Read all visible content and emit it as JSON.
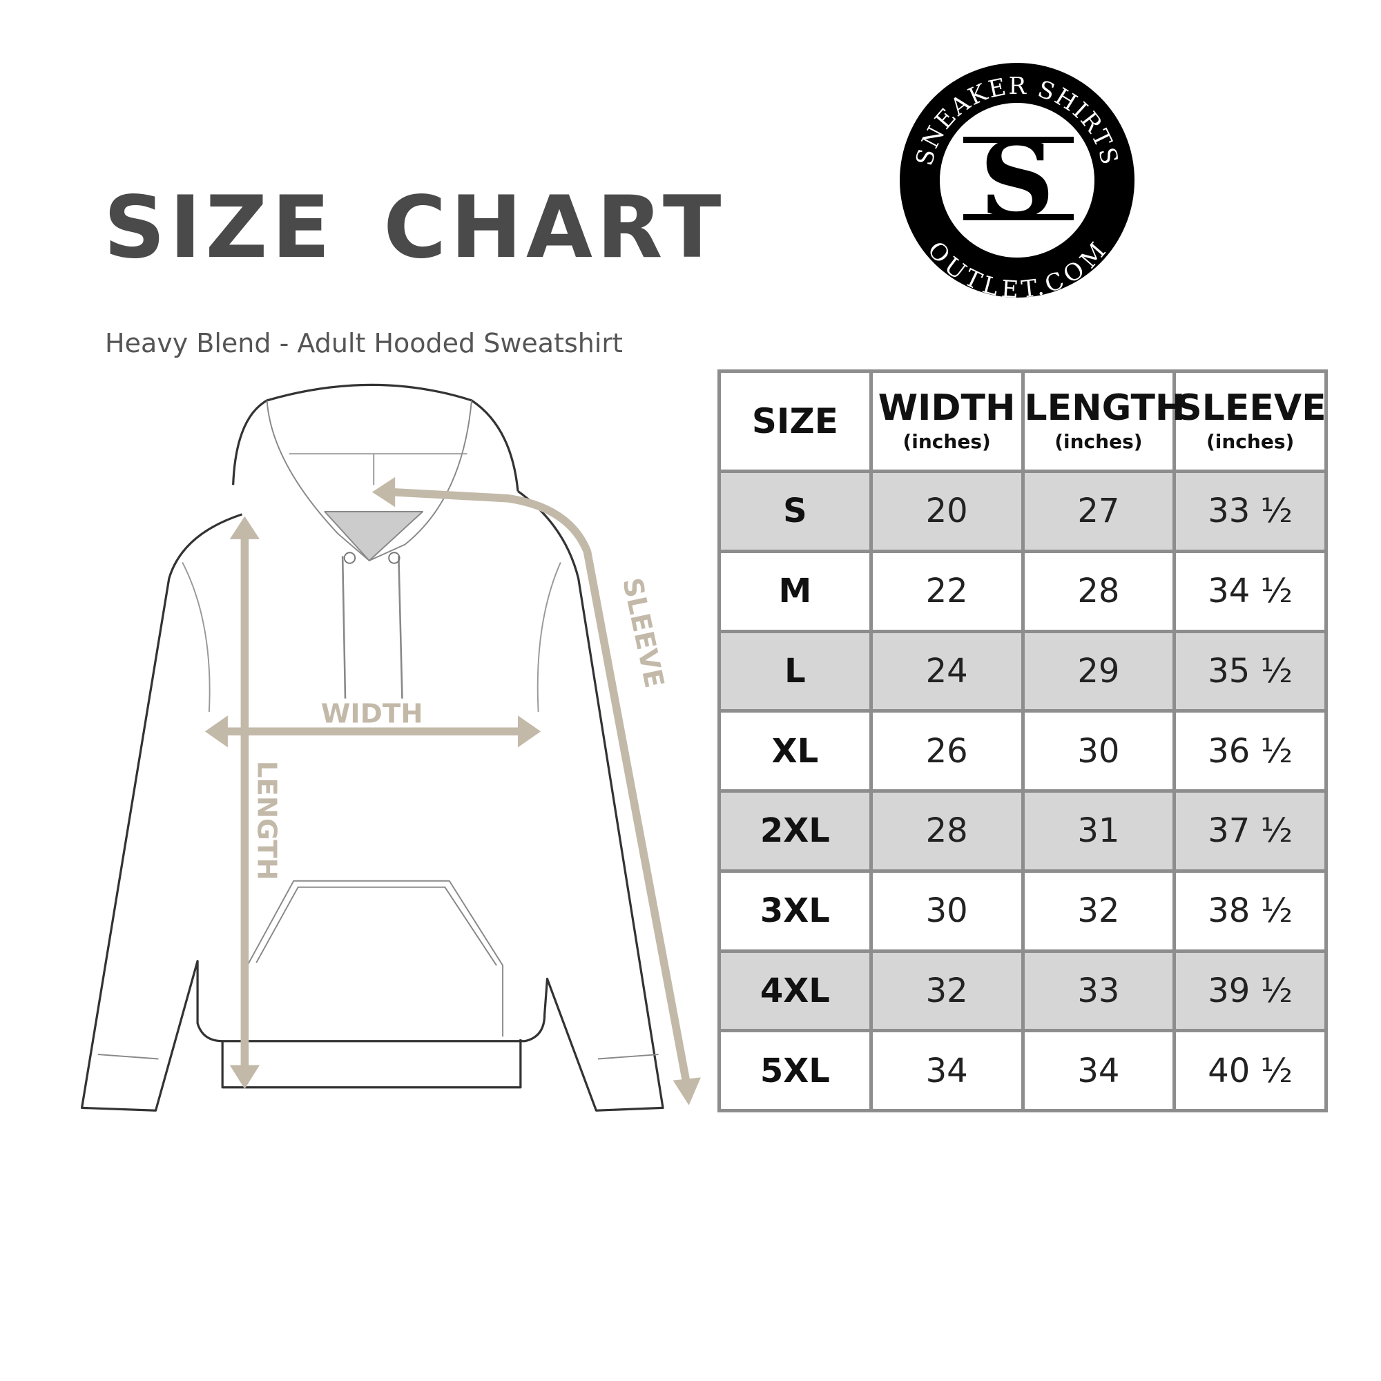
{
  "title": "SIZE CHART",
  "subtitle": "Heavy Blend - Adult Hooded Sweatshirt",
  "logo": {
    "top_text": "SNEAKER SHIRTS",
    "bottom_text": "OUTLET.COM",
    "monogram": "SS"
  },
  "diagram": {
    "width_label": "WIDTH",
    "length_label": "LENGTH",
    "sleeve_label": "SLEEVE",
    "arrow_color": "#c3b9a9"
  },
  "table": {
    "headers": [
      {
        "label": "SIZE",
        "unit": ""
      },
      {
        "label": "WIDTH",
        "unit": "(inches)"
      },
      {
        "label": "LENGTH",
        "unit": "(inches)"
      },
      {
        "label": "SLEEVE",
        "unit": "(inches)"
      }
    ],
    "rows": [
      [
        "S",
        "20",
        "27",
        "33 ½"
      ],
      [
        "M",
        "22",
        "28",
        "34 ½"
      ],
      [
        "L",
        "24",
        "29",
        "35 ½"
      ],
      [
        "XL",
        "26",
        "30",
        "36 ½"
      ],
      [
        "2XL",
        "28",
        "31",
        "37 ½"
      ],
      [
        "3XL",
        "30",
        "32",
        "38 ½"
      ],
      [
        "4XL",
        "32",
        "33",
        "39 ½"
      ],
      [
        "5XL",
        "34",
        "34",
        "40 ½"
      ]
    ],
    "shade_color": "#d6d6d6",
    "border_color": "#8d8d8d"
  }
}
